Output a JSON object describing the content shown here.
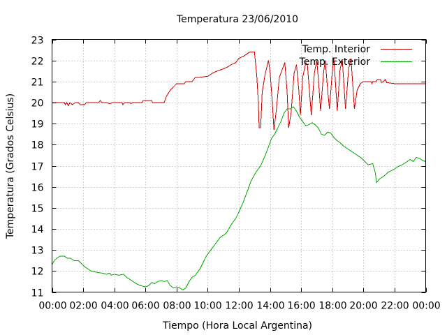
{
  "chart_data": {
    "type": "line",
    "title": "Temperatura 23/06/2010",
    "xlabel": "Tiempo (Hora Local Argentina)",
    "ylabel": "Temperatura (Grados Celsius)",
    "xlim": [
      0,
      24
    ],
    "ylim": [
      11,
      23
    ],
    "xticks": [
      0,
      2,
      4,
      6,
      8,
      10,
      12,
      14,
      16,
      18,
      20,
      22,
      24
    ],
    "xtick_labels": [
      "00:00",
      "02:00",
      "04:00",
      "06:00",
      "08:00",
      "10:00",
      "12:00",
      "14:00",
      "16:00",
      "18:00",
      "20:00",
      "22:00",
      "00:00"
    ],
    "yticks": [
      11,
      12,
      13,
      14,
      15,
      16,
      17,
      18,
      19,
      20,
      21,
      22,
      23
    ],
    "grid": true,
    "legend_position": "top-right",
    "series": [
      {
        "name": "Temp. Interior",
        "color": "#cc0000",
        "points": [
          [
            0.0,
            20.0
          ],
          [
            0.5,
            20.0
          ],
          [
            0.8,
            20.0
          ],
          [
            0.85,
            19.9
          ],
          [
            0.95,
            20.0
          ],
          [
            1.05,
            19.85
          ],
          [
            1.15,
            20.0
          ],
          [
            1.3,
            19.9
          ],
          [
            1.5,
            20.0
          ],
          [
            1.7,
            20.0
          ],
          [
            1.8,
            19.9
          ],
          [
            2.1,
            19.9
          ],
          [
            2.2,
            20.0
          ],
          [
            3.0,
            20.0
          ],
          [
            3.1,
            20.1
          ],
          [
            3.2,
            20.0
          ],
          [
            3.5,
            20.0
          ],
          [
            3.7,
            19.95
          ],
          [
            3.9,
            20.0
          ],
          [
            4.5,
            20.0
          ],
          [
            4.55,
            19.9
          ],
          [
            4.65,
            20.0
          ],
          [
            5.0,
            20.0
          ],
          [
            5.05,
            19.95
          ],
          [
            5.2,
            20.0
          ],
          [
            5.8,
            20.0
          ],
          [
            5.85,
            20.1
          ],
          [
            6.4,
            20.1
          ],
          [
            6.45,
            20.0
          ],
          [
            7.2,
            20.0
          ],
          [
            7.35,
            20.3
          ],
          [
            7.6,
            20.6
          ],
          [
            7.8,
            20.75
          ],
          [
            8.0,
            20.9
          ],
          [
            8.5,
            20.9
          ],
          [
            8.6,
            21.0
          ],
          [
            9.0,
            21.0
          ],
          [
            9.2,
            21.2
          ],
          [
            9.5,
            21.2
          ],
          [
            10.0,
            21.25
          ],
          [
            10.3,
            21.4
          ],
          [
            10.6,
            21.5
          ],
          [
            11.0,
            21.6
          ],
          [
            11.3,
            21.7
          ],
          [
            11.5,
            21.8
          ],
          [
            11.8,
            21.9
          ],
          [
            12.0,
            22.1
          ],
          [
            12.3,
            22.2
          ],
          [
            12.5,
            22.3
          ],
          [
            12.7,
            22.4
          ],
          [
            13.0,
            22.4
          ],
          [
            13.15,
            21.3
          ],
          [
            13.25,
            20.0
          ],
          [
            13.3,
            18.8
          ],
          [
            13.4,
            18.8
          ],
          [
            13.5,
            20.5
          ],
          [
            13.7,
            21.4
          ],
          [
            13.9,
            22.0
          ],
          [
            14.0,
            21.5
          ],
          [
            14.15,
            20.0
          ],
          [
            14.25,
            18.7
          ],
          [
            14.4,
            19.6
          ],
          [
            14.6,
            21.2
          ],
          [
            14.8,
            21.6
          ],
          [
            14.95,
            21.9
          ],
          [
            15.1,
            20.5
          ],
          [
            15.2,
            18.8
          ],
          [
            15.35,
            19.5
          ],
          [
            15.55,
            21.4
          ],
          [
            15.7,
            21.8
          ],
          [
            15.85,
            20.6
          ],
          [
            15.95,
            19.4
          ],
          [
            16.1,
            21.2
          ],
          [
            16.3,
            21.9
          ],
          [
            16.4,
            21.8
          ],
          [
            16.55,
            20.4
          ],
          [
            16.65,
            19.4
          ],
          [
            16.85,
            21.4
          ],
          [
            17.0,
            22.0
          ],
          [
            17.1,
            21.2
          ],
          [
            17.25,
            19.6
          ],
          [
            17.45,
            21.5
          ],
          [
            17.55,
            22.0
          ],
          [
            17.7,
            20.6
          ],
          [
            17.82,
            19.7
          ],
          [
            18.0,
            21.5
          ],
          [
            18.1,
            22.1
          ],
          [
            18.2,
            21.0
          ],
          [
            18.32,
            19.6
          ],
          [
            18.5,
            21.6
          ],
          [
            18.65,
            22.0
          ],
          [
            18.75,
            20.8
          ],
          [
            18.85,
            19.7
          ],
          [
            19.05,
            21.6
          ],
          [
            19.2,
            22.1
          ],
          [
            19.32,
            20.8
          ],
          [
            19.42,
            19.7
          ],
          [
            19.6,
            20.6
          ],
          [
            19.8,
            20.9
          ],
          [
            20.0,
            21.0
          ],
          [
            20.5,
            21.0
          ],
          [
            20.55,
            20.9
          ],
          [
            20.6,
            21.0
          ],
          [
            20.8,
            21.0
          ],
          [
            20.9,
            21.1
          ],
          [
            21.1,
            21.1
          ],
          [
            21.15,
            20.95
          ],
          [
            21.3,
            21.0
          ],
          [
            21.4,
            21.1
          ],
          [
            21.5,
            20.95
          ],
          [
            22.0,
            20.9
          ],
          [
            24.0,
            20.9
          ]
        ]
      },
      {
        "name": "Temp. Exterior",
        "color": "#00aa00",
        "points": [
          [
            0.0,
            12.3
          ],
          [
            0.15,
            12.5
          ],
          [
            0.3,
            12.6
          ],
          [
            0.5,
            12.7
          ],
          [
            0.8,
            12.7
          ],
          [
            0.9,
            12.65
          ],
          [
            1.0,
            12.6
          ],
          [
            1.2,
            12.6
          ],
          [
            1.4,
            12.5
          ],
          [
            1.7,
            12.5
          ],
          [
            1.9,
            12.35
          ],
          [
            2.1,
            12.2
          ],
          [
            2.3,
            12.1
          ],
          [
            2.5,
            12.0
          ],
          [
            2.8,
            11.95
          ],
          [
            3.2,
            11.9
          ],
          [
            3.5,
            11.85
          ],
          [
            3.7,
            11.9
          ],
          [
            3.8,
            11.8
          ],
          [
            4.0,
            11.85
          ],
          [
            4.3,
            11.8
          ],
          [
            4.6,
            11.85
          ],
          [
            4.8,
            11.7
          ],
          [
            5.0,
            11.6
          ],
          [
            5.2,
            11.5
          ],
          [
            5.4,
            11.4
          ],
          [
            5.7,
            11.3
          ],
          [
            6.0,
            11.25
          ],
          [
            6.2,
            11.3
          ],
          [
            6.4,
            11.45
          ],
          [
            6.6,
            11.4
          ],
          [
            6.8,
            11.5
          ],
          [
            7.0,
            11.55
          ],
          [
            7.2,
            11.5
          ],
          [
            7.4,
            11.55
          ],
          [
            7.6,
            11.3
          ],
          [
            7.8,
            11.2
          ],
          [
            8.0,
            11.25
          ],
          [
            8.2,
            11.2
          ],
          [
            8.4,
            11.1
          ],
          [
            8.6,
            11.2
          ],
          [
            8.8,
            11.5
          ],
          [
            9.0,
            11.7
          ],
          [
            9.2,
            11.8
          ],
          [
            9.5,
            12.1
          ],
          [
            9.7,
            12.4
          ],
          [
            9.9,
            12.7
          ],
          [
            10.2,
            13.0
          ],
          [
            10.5,
            13.3
          ],
          [
            10.8,
            13.6
          ],
          [
            11.2,
            13.8
          ],
          [
            11.5,
            14.2
          ],
          [
            11.8,
            14.5
          ],
          [
            12.0,
            14.8
          ],
          [
            12.3,
            15.3
          ],
          [
            12.5,
            15.7
          ],
          [
            12.8,
            16.3
          ],
          [
            13.1,
            16.7
          ],
          [
            13.4,
            17.0
          ],
          [
            13.7,
            17.5
          ],
          [
            13.9,
            17.9
          ],
          [
            14.1,
            18.3
          ],
          [
            14.3,
            18.5
          ],
          [
            14.5,
            18.8
          ],
          [
            14.7,
            19.1
          ],
          [
            14.9,
            19.5
          ],
          [
            15.1,
            19.7
          ],
          [
            15.3,
            19.7
          ],
          [
            15.5,
            19.8
          ],
          [
            15.7,
            19.6
          ],
          [
            15.9,
            19.3
          ],
          [
            16.1,
            19.1
          ],
          [
            16.3,
            18.9
          ],
          [
            16.5,
            18.95
          ],
          [
            16.7,
            19.05
          ],
          [
            16.9,
            18.95
          ],
          [
            17.1,
            18.8
          ],
          [
            17.3,
            18.5
          ],
          [
            17.5,
            18.45
          ],
          [
            17.7,
            18.6
          ],
          [
            17.9,
            18.55
          ],
          [
            18.1,
            18.35
          ],
          [
            18.3,
            18.2
          ],
          [
            18.5,
            18.1
          ],
          [
            18.7,
            17.95
          ],
          [
            18.9,
            17.85
          ],
          [
            19.1,
            17.75
          ],
          [
            19.3,
            17.65
          ],
          [
            19.5,
            17.55
          ],
          [
            19.7,
            17.45
          ],
          [
            19.9,
            17.35
          ],
          [
            20.1,
            17.2
          ],
          [
            20.3,
            17.05
          ],
          [
            20.6,
            17.1
          ],
          [
            20.75,
            16.7
          ],
          [
            20.85,
            16.2
          ],
          [
            21.0,
            16.35
          ],
          [
            21.3,
            16.5
          ],
          [
            21.6,
            16.7
          ],
          [
            21.9,
            16.8
          ],
          [
            22.2,
            16.95
          ],
          [
            22.5,
            17.05
          ],
          [
            22.8,
            17.2
          ],
          [
            23.0,
            17.3
          ],
          [
            23.2,
            17.2
          ],
          [
            23.4,
            17.4
          ],
          [
            23.6,
            17.35
          ],
          [
            23.8,
            17.25
          ],
          [
            24.0,
            17.2
          ]
        ]
      }
    ]
  }
}
